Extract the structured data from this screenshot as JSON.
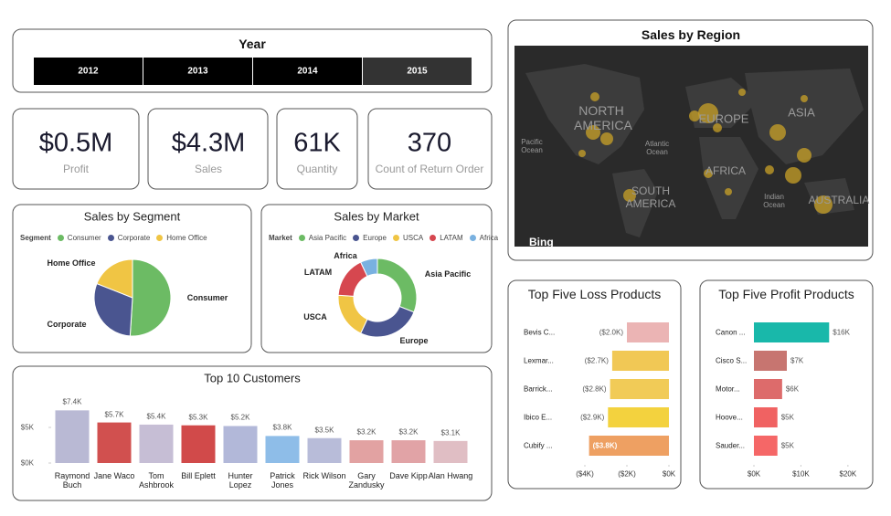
{
  "year_slicer": {
    "title": "Year",
    "options": [
      "2012",
      "2013",
      "2014",
      "2015"
    ],
    "selected_index": 3
  },
  "cards": [
    {
      "value": "$0.5M",
      "label": "Profit"
    },
    {
      "value": "$4.3M",
      "label": "Sales"
    },
    {
      "value": "61K",
      "label": "Quantity"
    },
    {
      "value": "370",
      "label": "Count of Return Order"
    }
  ],
  "map": {
    "title": "Sales by Region",
    "labels": [
      "NORTH AMERICA",
      "EUROPE",
      "ASIA",
      "AFRICA",
      "SOUTH AMERICA",
      "AUSTRALIA",
      "Pacific Ocean",
      "Atlantic Ocean",
      "Indian Ocean"
    ],
    "logo": "Bing"
  },
  "chart_data": [
    {
      "type": "pie",
      "title": "Sales by Segment",
      "legend_title": "Segment",
      "categories": [
        "Consumer",
        "Corporate",
        "Home Office"
      ],
      "values": [
        51,
        30,
        19
      ],
      "colors": [
        "#6cbb64",
        "#4a5590",
        "#f0c544"
      ]
    },
    {
      "type": "donut",
      "title": "Sales by Market",
      "legend_title": "Market",
      "categories": [
        "Asia Pacific",
        "Europe",
        "USCA",
        "LATAM",
        "Africa"
      ],
      "values": [
        31,
        26,
        19,
        17,
        7
      ],
      "colors": [
        "#6cbb64",
        "#4a5590",
        "#f0c544",
        "#d6474f",
        "#79b1e0"
      ]
    },
    {
      "type": "bar",
      "title": "Top 10 Customers",
      "categories": [
        "Raymond Buch",
        "Jane Waco",
        "Tom Ashbrook",
        "Bill Eplett",
        "Hunter Lopez",
        "Patrick Jones",
        "Rick Wilson",
        "Gary Zandusky",
        "Dave Kipp",
        "Alan Hwang"
      ],
      "values": [
        7400,
        5700,
        5400,
        5300,
        5200,
        3800,
        3500,
        3200,
        3200,
        3100
      ],
      "value_labels": [
        "$7.4K",
        "$5.7K",
        "$5.4K",
        "$5.3K",
        "$5.2K",
        "$3.8K",
        "$3.5K",
        "$3.2K",
        "$3.2K",
        "$3.1K"
      ],
      "colors": [
        "#b9b9d4",
        "#d1504f",
        "#c6bed5",
        "#d14a4a",
        "#b2b8d9",
        "#8ebde8",
        "#b8bcd9",
        "#e2a2a2",
        "#e1a3a6",
        "#e0bec4"
      ],
      "ylim": [
        0,
        8600
      ],
      "yticks": [
        {
          "value": 0,
          "label": "$0K"
        },
        {
          "value": 5000,
          "label": "$5K"
        }
      ],
      "grid": false
    },
    {
      "type": "hbar",
      "title": "Top Five Loss Products",
      "categories": [
        "Bevis C...",
        "Lexmar...",
        "Barrick...",
        "Ibico E...",
        "Cubify ..."
      ],
      "values": [
        -2000,
        -2700,
        -2800,
        -2900,
        -3800
      ],
      "value_labels": [
        "($2.0K)",
        "($2.7K)",
        "($2.8K)",
        "($2.9K)",
        "($3.8K)"
      ],
      "colors": [
        "#ebb4b4",
        "#f1c855",
        "#f1cb57",
        "#f3d23e",
        "#eea062"
      ],
      "xlim": [
        -5000,
        0
      ],
      "xticks": [
        {
          "value": -4000,
          "label": "($4K)"
        },
        {
          "value": -2000,
          "label": "($2K)"
        },
        {
          "value": 0,
          "label": "$0K"
        }
      ]
    },
    {
      "type": "hbar",
      "title": "Top Five Profit Products",
      "categories": [
        "Canon ...",
        "Cisco S...",
        "Motor...",
        "Hoove...",
        "Sauder..."
      ],
      "values": [
        16000,
        7000,
        6000,
        5000,
        5000
      ],
      "value_labels": [
        "$16K",
        "$7K",
        "$6K",
        "$5K",
        "$5K"
      ],
      "colors": [
        "#19b8aa",
        "#c77570",
        "#dd6b6b",
        "#f06262",
        "#f56767"
      ],
      "xlim": [
        0,
        21000
      ],
      "xticks": [
        {
          "value": 0,
          "label": "$0K"
        },
        {
          "value": 10000,
          "label": "$10K"
        },
        {
          "value": 20000,
          "label": "$20K"
        }
      ]
    }
  ]
}
